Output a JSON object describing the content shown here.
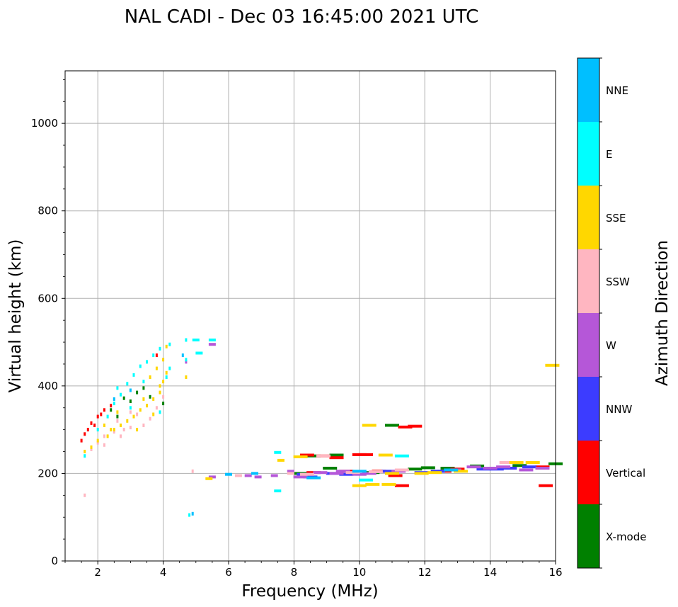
{
  "chart_data": {
    "type": "scatter",
    "title": "NAL CADI - Dec 03 16:45:00 2021 UTC",
    "xlabel": "Frequency (MHz)",
    "ylabel": "Virtual height (km)",
    "xlim": [
      1,
      16
    ],
    "ylim": [
      0,
      1120
    ],
    "xticks": [
      "2",
      "4",
      "6",
      "8",
      "10",
      "12",
      "14",
      "16"
    ],
    "yticks": [
      "0",
      "200",
      "400",
      "600",
      "800",
      "1000"
    ],
    "grid": true,
    "colorbar": {
      "label": "Azimuth Direction",
      "categories": [
        {
          "name": "X-mode",
          "color": "#008000"
        },
        {
          "name": "Vertical",
          "color": "#ff0000"
        },
        {
          "name": "NNW",
          "color": "#3c3cff"
        },
        {
          "name": "W",
          "color": "#b557d8"
        },
        {
          "name": "SSW",
          "color": "#ffb6c1"
        },
        {
          "name": "SSE",
          "color": "#ffd700"
        },
        {
          "name": "E",
          "color": "#00ffff"
        },
        {
          "name": "NNE",
          "color": "#00bfff"
        }
      ]
    },
    "series": [
      {
        "name": "X-mode",
        "points": [
          [
            3.0,
            365
          ],
          [
            3.2,
            385
          ],
          [
            2.4,
            345
          ],
          [
            2.6,
            330
          ],
          [
            3.6,
            375
          ],
          [
            4.0,
            360
          ],
          [
            8.6,
            240
          ],
          [
            9.3,
            242
          ],
          [
            11.0,
            310
          ],
          [
            11.7,
            210
          ],
          [
            12.1,
            213
          ],
          [
            12.7,
            212
          ],
          [
            13.6,
            217
          ],
          [
            8.2,
            200
          ],
          [
            10.4,
            202
          ],
          [
            14.9,
            218
          ],
          [
            16.0,
            222
          ],
          [
            9.1,
            212
          ],
          [
            2.8,
            372
          ],
          [
            3.4,
            395
          ]
        ]
      },
      {
        "name": "Vertical",
        "points": [
          [
            1.5,
            275
          ],
          [
            1.6,
            290
          ],
          [
            1.7,
            300
          ],
          [
            1.8,
            315
          ],
          [
            2.1,
            335
          ],
          [
            2.4,
            355
          ],
          [
            1.9,
            310
          ],
          [
            2.0,
            330
          ],
          [
            2.2,
            345
          ],
          [
            3.8,
            470
          ],
          [
            8.4,
            242
          ],
          [
            8.9,
            240
          ],
          [
            9.3,
            236
          ],
          [
            10.0,
            243
          ],
          [
            10.2,
            243
          ],
          [
            10.6,
            205
          ],
          [
            11.1,
            195
          ],
          [
            11.3,
            172
          ],
          [
            11.4,
            306
          ],
          [
            11.7,
            308
          ],
          [
            15.6,
            215
          ],
          [
            15.7,
            172
          ],
          [
            13.0,
            210
          ],
          [
            9.6,
            205
          ],
          [
            12.6,
            205
          ],
          [
            8.6,
            202
          ]
        ]
      },
      {
        "name": "NNW",
        "points": [
          [
            8.3,
            198
          ],
          [
            8.5,
            192
          ],
          [
            9.6,
            198
          ],
          [
            10.9,
            205
          ],
          [
            12.4,
            205
          ],
          [
            14.2,
            210
          ],
          [
            14.6,
            212
          ],
          [
            15.2,
            215
          ],
          [
            13.8,
            210
          ],
          [
            9.2,
            200
          ],
          [
            11.9,
            202
          ]
        ]
      },
      {
        "name": "W",
        "points": [
          [
            5.5,
            192
          ],
          [
            6.6,
            195
          ],
          [
            6.9,
            192
          ],
          [
            7.4,
            195
          ],
          [
            7.9,
            205
          ],
          [
            8.2,
            192
          ],
          [
            8.8,
            202
          ],
          [
            9.3,
            200
          ],
          [
            9.5,
            205
          ],
          [
            10.3,
            200
          ],
          [
            12.9,
            208
          ],
          [
            13.5,
            215
          ],
          [
            14.0,
            212
          ],
          [
            14.4,
            215
          ],
          [
            15.1,
            208
          ],
          [
            15.6,
            212
          ],
          [
            4.7,
            455
          ],
          [
            5.5,
            495
          ],
          [
            11.2,
            205
          ],
          [
            10.0,
            198
          ]
        ]
      },
      {
        "name": "SSW",
        "points": [
          [
            1.6,
            150
          ],
          [
            1.8,
            255
          ],
          [
            2.0,
            270
          ],
          [
            2.2,
            285
          ],
          [
            2.5,
            295
          ],
          [
            2.8,
            300
          ],
          [
            3.0,
            305
          ],
          [
            3.4,
            310
          ],
          [
            2.6,
            320
          ],
          [
            3.2,
            335
          ],
          [
            3.8,
            350
          ],
          [
            4.0,
            375
          ],
          [
            3.0,
            340
          ],
          [
            2.2,
            265
          ],
          [
            4.9,
            205
          ],
          [
            6.3,
            195
          ],
          [
            7.9,
            200
          ],
          [
            8.4,
            198
          ],
          [
            8.9,
            240
          ],
          [
            9.8,
            202
          ],
          [
            10.5,
            204
          ],
          [
            11.3,
            208
          ],
          [
            14.5,
            225
          ],
          [
            2.7,
            285
          ],
          [
            3.6,
            325
          ]
        ]
      },
      {
        "name": "SSE",
        "points": [
          [
            1.6,
            250
          ],
          [
            1.8,
            260
          ],
          [
            2.0,
            275
          ],
          [
            2.3,
            285
          ],
          [
            2.5,
            300
          ],
          [
            2.7,
            310
          ],
          [
            2.9,
            320
          ],
          [
            3.1,
            330
          ],
          [
            3.3,
            345
          ],
          [
            3.5,
            355
          ],
          [
            3.7,
            370
          ],
          [
            3.9,
            385
          ],
          [
            4.0,
            410
          ],
          [
            4.1,
            430
          ],
          [
            3.6,
            420
          ],
          [
            3.8,
            440
          ],
          [
            4.0,
            460
          ],
          [
            2.2,
            310
          ],
          [
            2.6,
            340
          ],
          [
            3.2,
            300
          ],
          [
            3.7,
            335
          ],
          [
            4.1,
            490
          ],
          [
            4.7,
            420
          ],
          [
            5.4,
            188
          ],
          [
            7.6,
            230
          ],
          [
            8.2,
            238
          ],
          [
            10.0,
            172
          ],
          [
            10.4,
            175
          ],
          [
            10.9,
            175
          ],
          [
            10.8,
            242
          ],
          [
            11.0,
            200
          ],
          [
            11.9,
            200
          ],
          [
            12.3,
            202
          ],
          [
            13.1,
            205
          ],
          [
            14.8,
            225
          ],
          [
            15.3,
            225
          ],
          [
            15.9,
            447
          ],
          [
            10.3,
            310
          ],
          [
            2.4,
            300
          ],
          [
            3.4,
            370
          ],
          [
            3.9,
            400
          ]
        ]
      },
      {
        "name": "E",
        "points": [
          [
            1.6,
            240
          ],
          [
            2.0,
            300
          ],
          [
            2.3,
            330
          ],
          [
            2.5,
            360
          ],
          [
            2.7,
            380
          ],
          [
            2.9,
            405
          ],
          [
            3.1,
            425
          ],
          [
            3.3,
            445
          ],
          [
            3.5,
            455
          ],
          [
            3.7,
            470
          ],
          [
            3.9,
            485
          ],
          [
            4.2,
            495
          ],
          [
            4.7,
            505
          ],
          [
            5.0,
            505
          ],
          [
            5.5,
            505
          ],
          [
            5.1,
            475
          ],
          [
            4.7,
            460
          ],
          [
            7.5,
            248
          ],
          [
            7.5,
            160
          ],
          [
            4.8,
            105
          ],
          [
            11.3,
            240
          ],
          [
            4.2,
            440
          ],
          [
            3.9,
            340
          ],
          [
            3.4,
            410
          ],
          [
            2.6,
            395
          ],
          [
            3.0,
            350
          ],
          [
            10.2,
            185
          ],
          [
            4.1,
            420
          ]
        ]
      },
      {
        "name": "NNE",
        "points": [
          [
            6.8,
            200
          ],
          [
            8.6,
            190
          ],
          [
            4.9,
            108
          ],
          [
            10.0,
            205
          ],
          [
            12.8,
            208
          ],
          [
            3.0,
            390
          ],
          [
            2.5,
            370
          ],
          [
            6.0,
            198
          ],
          [
            4.6,
            470
          ]
        ]
      }
    ]
  }
}
